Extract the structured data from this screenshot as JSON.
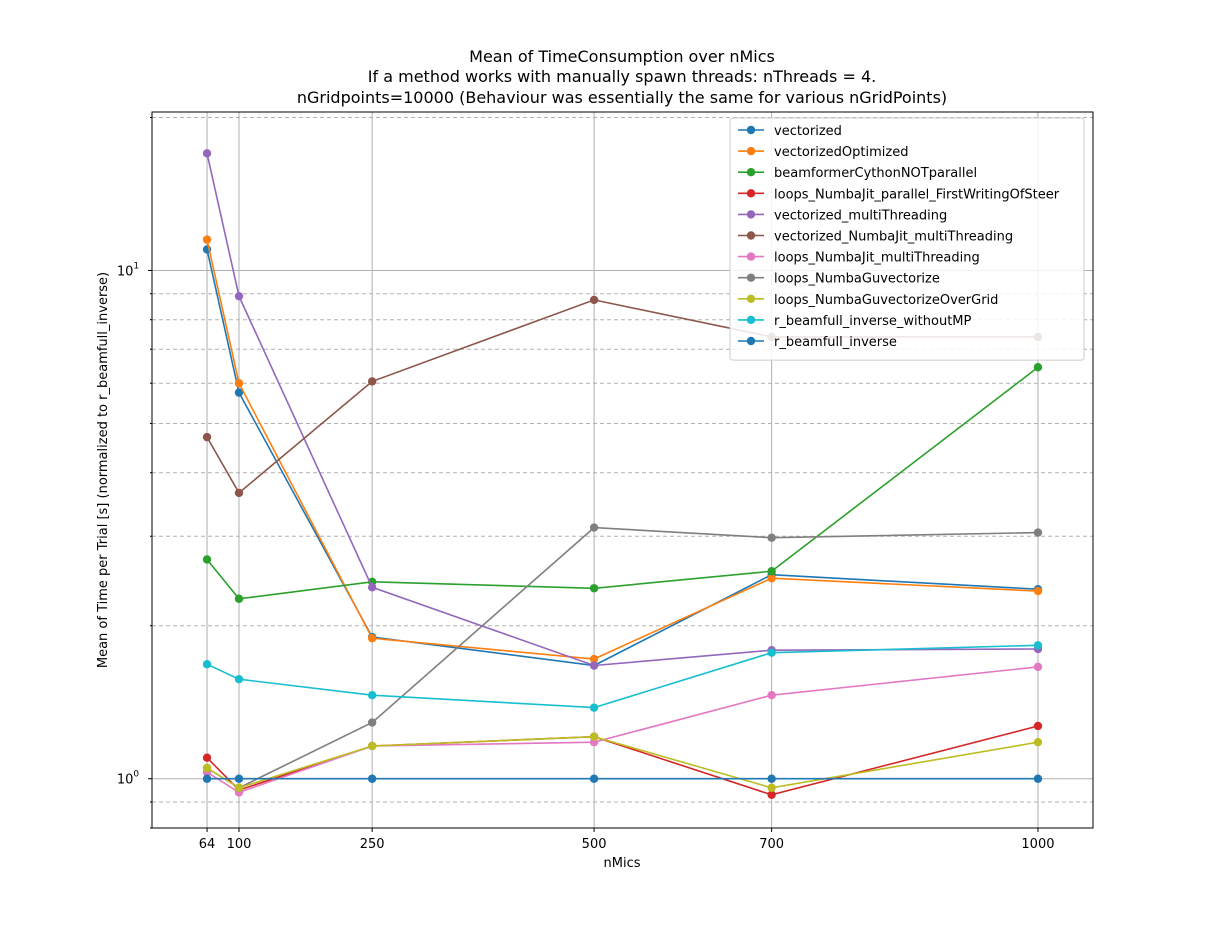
{
  "chart_data": {
    "type": "line",
    "title": [
      "Mean of TimeConsumption over nMics",
      "If a method works with manually spawn threads: nThreads = 4.",
      "nGridpoints=10000 (Behaviour was essentially the same for various nGridPoints)"
    ],
    "xlabel": "nMics",
    "ylabel": "Mean of Time per Trial [s] (normalized to r_beamfull_inverse)",
    "x": [
      64,
      100,
      250,
      500,
      700,
      1000
    ],
    "x_ticks": [
      "64",
      "100",
      "250",
      "500",
      "700",
      "1000"
    ],
    "y_scale": "log",
    "y_ticks": [
      {
        "value": 1,
        "label": "10^0"
      },
      {
        "value": 10,
        "label": "10^1"
      }
    ],
    "xlim": [
      2,
      1062
    ],
    "ylim": [
      0.8,
      20.5
    ],
    "grid": true,
    "legend_position": "top-right",
    "series": [
      {
        "name": "vectorized",
        "color": "#1f77b4",
        "values": [
          11.0,
          5.75,
          1.9,
          1.67,
          2.52,
          2.36
        ]
      },
      {
        "name": "vectorizedOptimized",
        "color": "#ff7f0e",
        "values": [
          11.5,
          6.0,
          1.89,
          1.72,
          2.48,
          2.34
        ]
      },
      {
        "name": "beamformerCythonNOTparallel",
        "color": "#2ca02c",
        "values": [
          2.7,
          2.26,
          2.44,
          2.37,
          2.56,
          6.45
        ]
      },
      {
        "name": "loops_NumbaJit_parallel_FirstWritingOfSteer",
        "color": "#d62728",
        "values": [
          1.1,
          0.95,
          1.16,
          1.21,
          0.93,
          1.27
        ]
      },
      {
        "name": "vectorized_multiThreading",
        "color": "#9467bd",
        "values": [
          17.0,
          8.9,
          2.38,
          1.67,
          1.79,
          1.8
        ]
      },
      {
        "name": "vectorized_NumbaJit_multiThreading",
        "color": "#8c564b",
        "values": [
          4.7,
          3.65,
          6.05,
          8.75,
          7.4,
          7.4
        ]
      },
      {
        "name": "loops_NumbaJit_multiThreading",
        "color": "#e377c2",
        "values": [
          1.03,
          0.94,
          1.16,
          1.18,
          1.46,
          1.66
        ]
      },
      {
        "name": "loops_NumbaGuvectorize",
        "color": "#7f7f7f",
        "values": [
          1.05,
          0.96,
          1.29,
          3.12,
          2.98,
          3.05
        ]
      },
      {
        "name": "loops_NumbaGuvectorizeOverGrid",
        "color": "#bcbd22",
        "values": [
          1.05,
          0.96,
          1.16,
          1.21,
          0.96,
          1.18
        ]
      },
      {
        "name": "r_beamfull_inverse_withoutMP",
        "color": "#17becf",
        "values": [
          1.68,
          1.57,
          1.46,
          1.38,
          1.77,
          1.83
        ]
      },
      {
        "name": "r_beamfull_inverse",
        "color": "#1f77b4",
        "values": [
          1.0,
          1.0,
          1.0,
          1.0,
          1.0,
          1.0
        ]
      }
    ]
  }
}
